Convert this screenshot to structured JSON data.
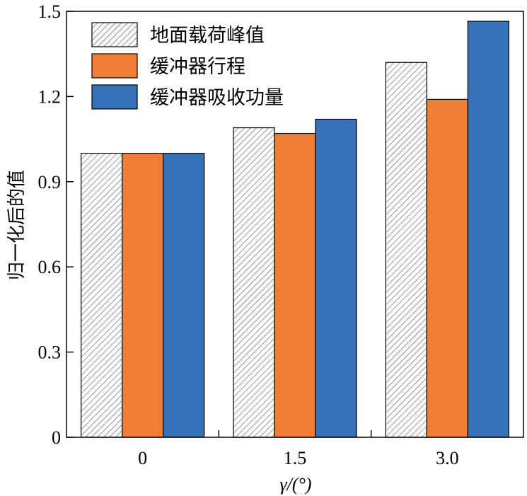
{
  "chart_data": {
    "type": "bar",
    "categories": [
      "0",
      "1.5",
      "3.0"
    ],
    "series": [
      {
        "name": "地面载荷峰值",
        "values": [
          1.0,
          1.09,
          1.32
        ],
        "color": "#ffffff",
        "pattern": "hatch"
      },
      {
        "name": "缓冲器行程",
        "values": [
          1.0,
          1.07,
          1.19
        ],
        "color": "#f07f35",
        "pattern": "solid"
      },
      {
        "name": "缓冲器吸收功量",
        "values": [
          1.0,
          1.12,
          1.465
        ],
        "color": "#3572b8",
        "pattern": "solid"
      }
    ],
    "ylabel": "归一化后的值",
    "xlabel": "γ/(°)",
    "ylim": [
      0,
      1.5
    ],
    "yticks": [
      0,
      0.3,
      0.6,
      0.9,
      1.2,
      1.5
    ],
    "ytick_labels": [
      "0",
      "0.3",
      "0.6",
      "0.9",
      "1.2",
      "1.5"
    ],
    "legend_position": "top-left",
    "grid": false
  }
}
